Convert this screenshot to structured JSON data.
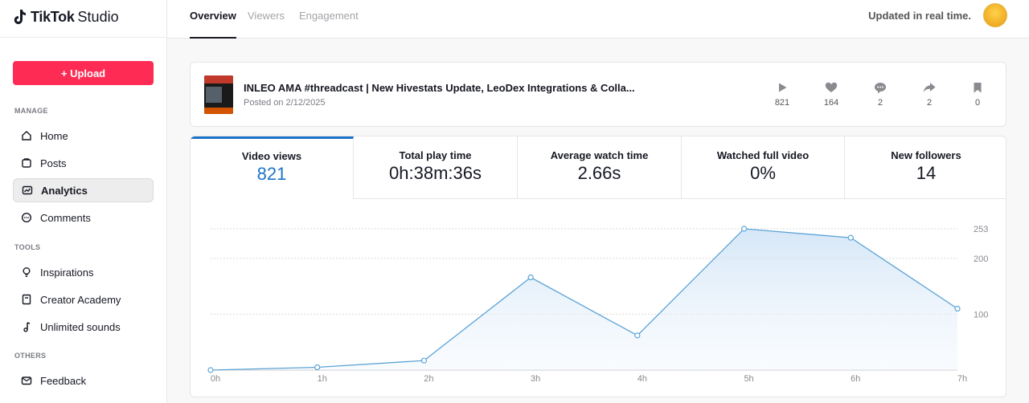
{
  "sidebar": {
    "brand": "TikTok",
    "studio": "Studio",
    "upload_label": "+ Upload",
    "sections": {
      "manage": "MANAGE",
      "tools": "TOOLS",
      "others": "OTHERS"
    },
    "items": [
      {
        "label": "Home",
        "icon": "home-icon"
      },
      {
        "label": "Posts",
        "icon": "posts-icon"
      },
      {
        "label": "Analytics",
        "icon": "analytics-icon"
      },
      {
        "label": "Comments",
        "icon": "comments-icon"
      },
      {
        "label": "Inspirations",
        "icon": "lightbulb-icon"
      },
      {
        "label": "Creator Academy",
        "icon": "book-icon"
      },
      {
        "label": "Unlimited sounds",
        "icon": "music-note-icon"
      },
      {
        "label": "Feedback",
        "icon": "mail-icon"
      }
    ]
  },
  "header": {
    "tabs": [
      {
        "label": "Overview"
      },
      {
        "label": "Viewers"
      },
      {
        "label": "Engagement"
      }
    ],
    "realtime": "Updated in real time."
  },
  "video": {
    "title": "INLEO AMA #threadcast | New Hivestats Update, LeoDex Integrations & Colla...",
    "posted": "Posted on 2/12/2025",
    "stats": [
      {
        "icon": "play-icon",
        "value": "821"
      },
      {
        "icon": "heart-icon",
        "value": "164"
      },
      {
        "icon": "comment-icon",
        "value": "2"
      },
      {
        "icon": "share-icon",
        "value": "2"
      },
      {
        "icon": "bookmark-icon",
        "value": "0"
      }
    ]
  },
  "metrics": [
    {
      "label": "Video views",
      "value": "821"
    },
    {
      "label": "Total play time",
      "value": "0h:38m:36s"
    },
    {
      "label": "Average watch time",
      "value": "2.66s"
    },
    {
      "label": "Watched full video",
      "value": "0%"
    },
    {
      "label": "New followers",
      "value": "14"
    }
  ],
  "colors": {
    "accent": "#fe2c55",
    "line": "#5ba3d6",
    "selected": "#1a73c8"
  },
  "chart_data": {
    "type": "area",
    "x": [
      "0h",
      "1h",
      "2h",
      "3h",
      "4h",
      "5h",
      "6h",
      "7h"
    ],
    "series": [
      {
        "values": [
          0,
          5,
          17,
          166,
          62,
          253,
          237,
          110
        ]
      }
    ],
    "y_ticks": [
      "100",
      "200",
      "253"
    ],
    "ylim": [
      0,
      253
    ],
    "grid": true
  }
}
